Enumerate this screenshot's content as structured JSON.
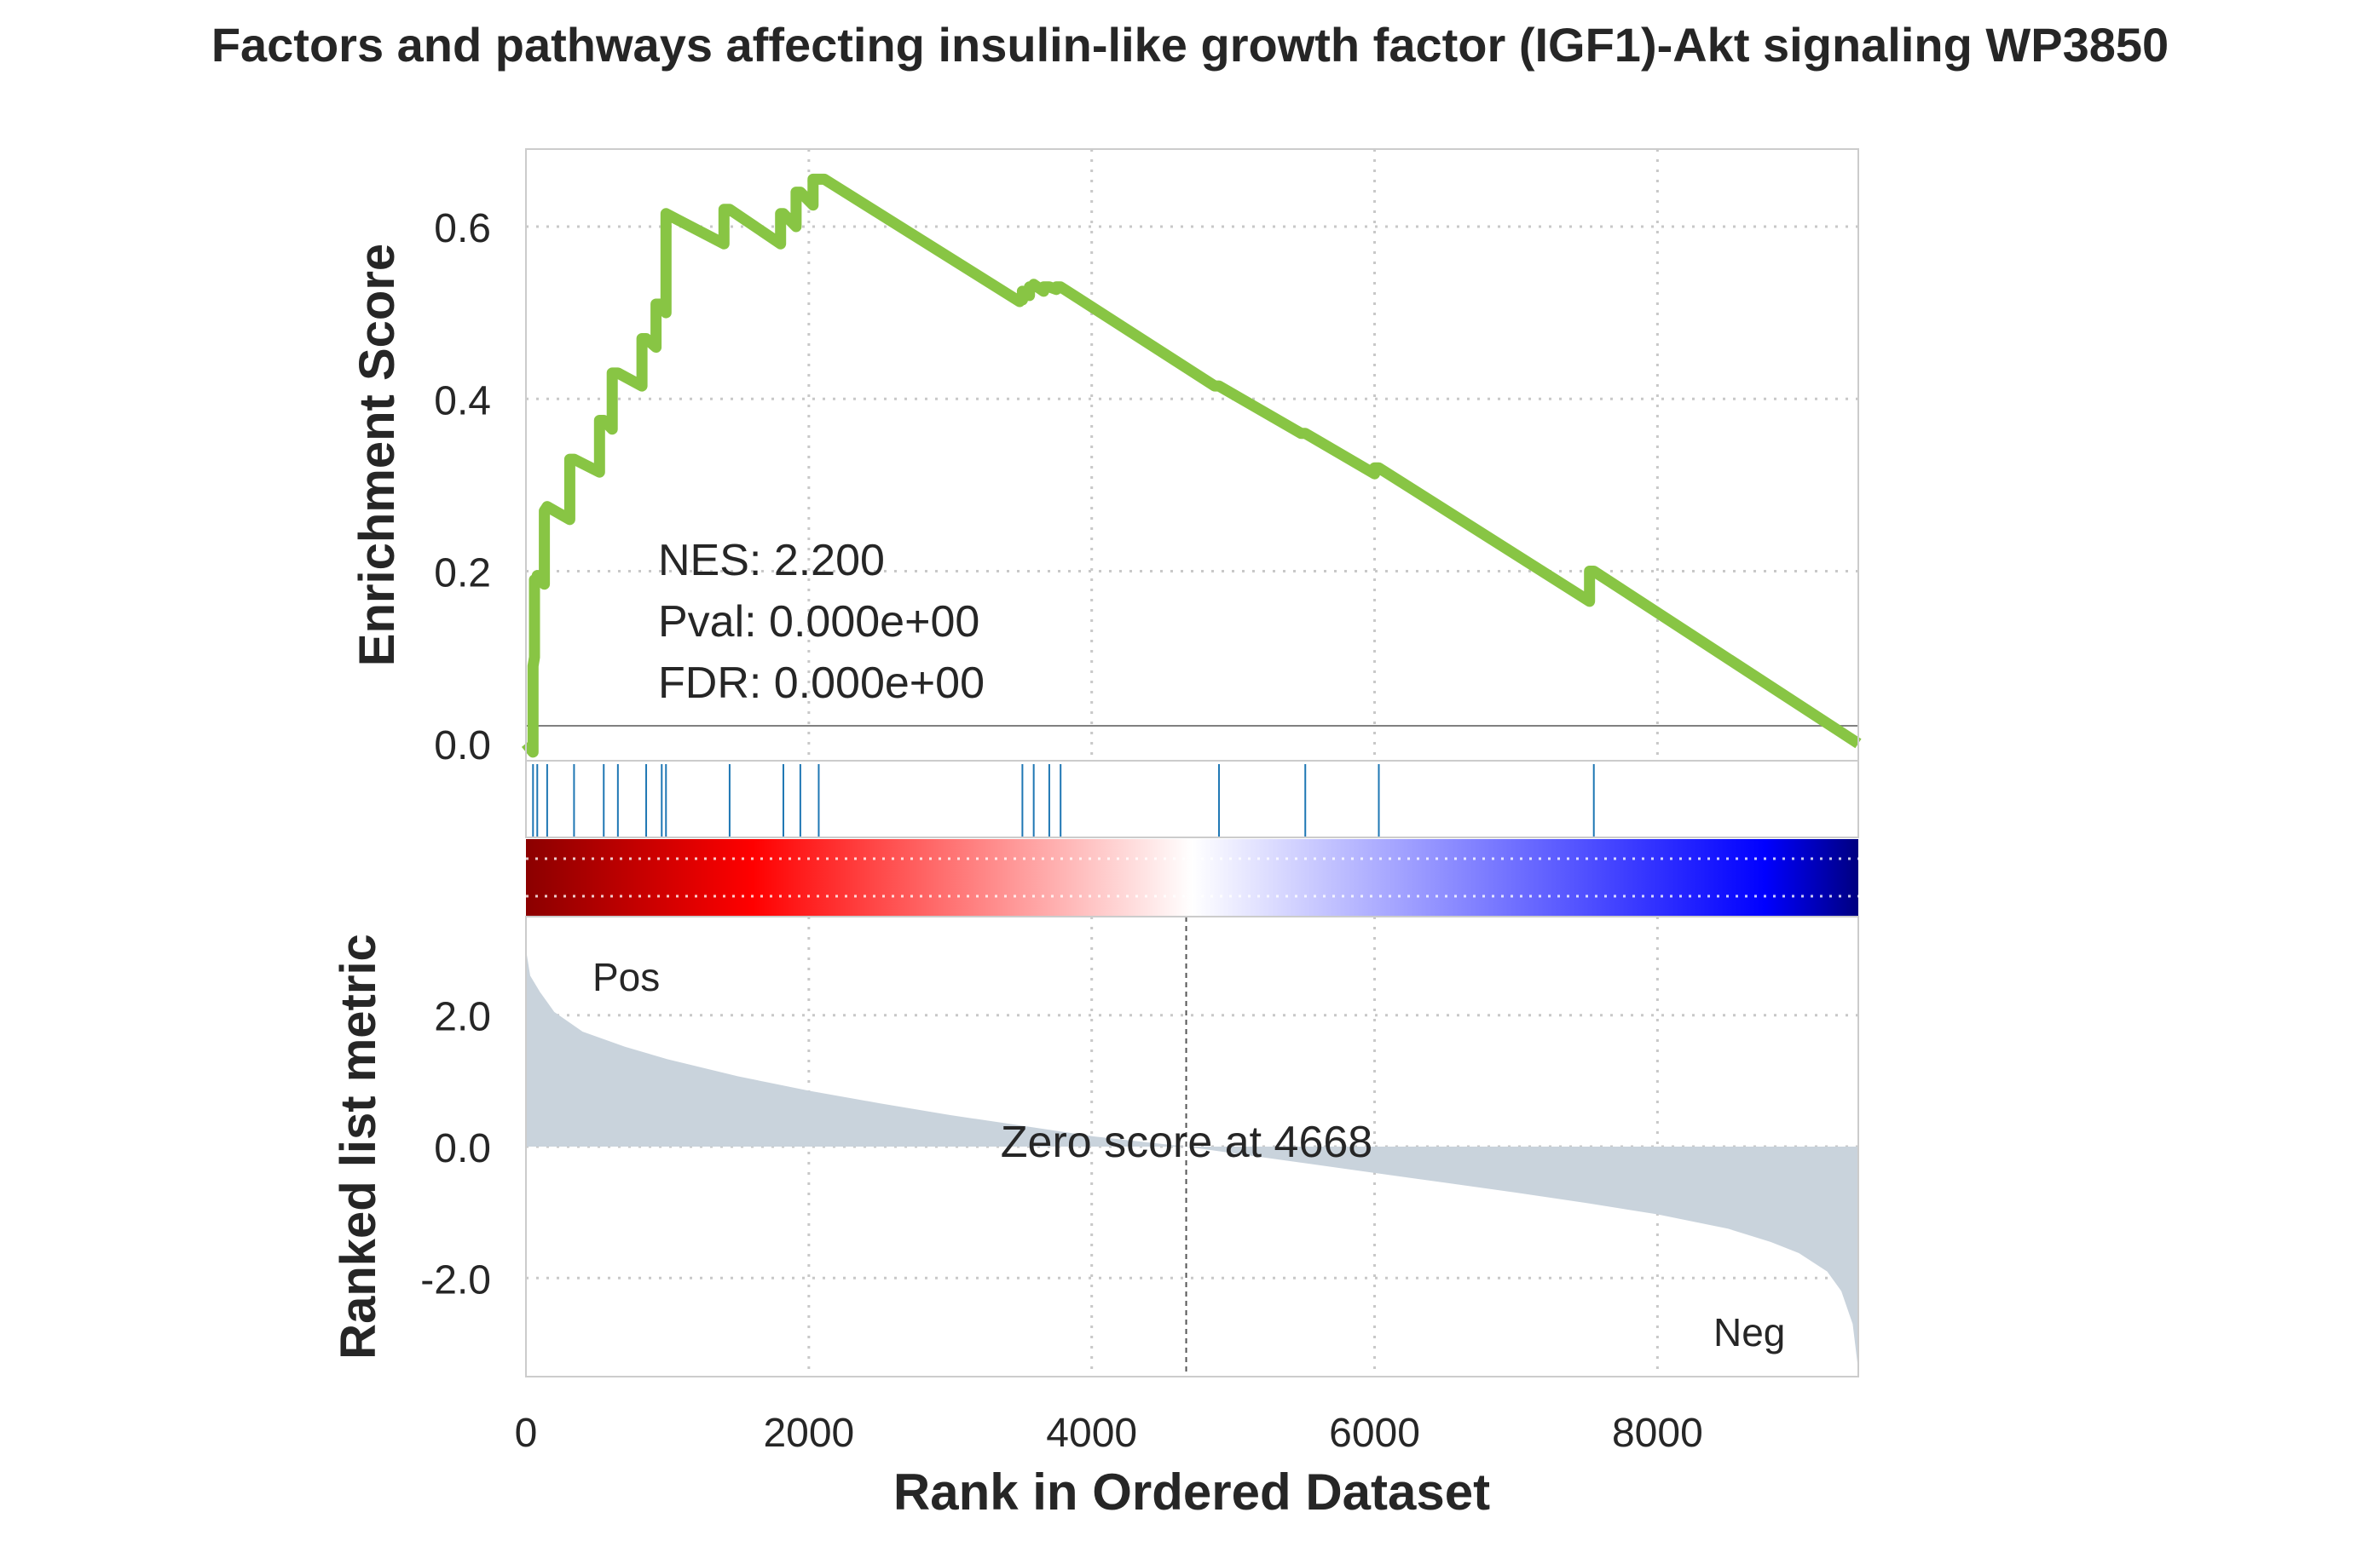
{
  "chart_data": {
    "type": "line",
    "title": "Factors and pathways affecting insulin-like growth factor (IGF1)-Akt signaling WP3850",
    "xlabel": "Rank in Ordered Dataset",
    "x_ticks": [
      "0",
      "2000",
      "4000",
      "6000",
      "8000"
    ],
    "xlim": [
      0,
      9420
    ],
    "panels": {
      "enrichment": {
        "ylabel": "Enrichment Score",
        "ylim": [
          -0.02,
          0.69
        ],
        "y_ticks": [
          "0.0",
          "0.2",
          "0.4",
          "0.6"
        ],
        "y_tick_values": [
          0.0,
          0.2,
          0.4,
          0.6
        ],
        "line_color": "#88c544",
        "series": {
          "x": [
            0,
            50,
            50,
            60,
            60,
            80,
            80,
            130,
            130,
            150,
            150,
            310,
            310,
            340,
            340,
            520,
            520,
            550,
            550,
            610,
            610,
            650,
            650,
            820,
            820,
            850,
            850,
            920,
            920,
            960,
            960,
            990,
            990,
            1400,
            1400,
            1440,
            1440,
            1800,
            1800,
            1820,
            1820,
            1910,
            1910,
            1940,
            1940,
            2030,
            2030,
            2070,
            2070,
            2110,
            3490,
            3490,
            3510,
            3510,
            3560,
            3560,
            3590,
            3590,
            3660,
            3660,
            3700,
            3700,
            3750,
            3750,
            3780,
            4870,
            4870,
            4900,
            5480,
            5480,
            5510,
            6000,
            6000,
            6030,
            7520,
            7520,
            7550,
            9420
          ],
          "y": [
            0.0,
            -0.01,
            0.09,
            0.1,
            0.19,
            0.19,
            0.195,
            0.185,
            0.27,
            0.275,
            0.275,
            0.26,
            0.33,
            0.33,
            0.33,
            0.315,
            0.375,
            0.375,
            0.375,
            0.365,
            0.43,
            0.43,
            0.43,
            0.415,
            0.47,
            0.47,
            0.47,
            0.46,
            0.51,
            0.51,
            0.51,
            0.5,
            0.615,
            0.58,
            0.62,
            0.62,
            0.62,
            0.58,
            0.615,
            0.615,
            0.615,
            0.6,
            0.64,
            0.64,
            0.64,
            0.625,
            0.655,
            0.655,
            0.655,
            0.655,
            0.513,
            0.515,
            0.515,
            0.525,
            0.52,
            0.53,
            0.53,
            0.533,
            0.525,
            0.53,
            0.53,
            0.53,
            0.527,
            0.53,
            0.53,
            0.415,
            0.415,
            0.415,
            0.36,
            0.36,
            0.36,
            0.313,
            0.32,
            0.32,
            0.165,
            0.2,
            0.2,
            0.0
          ]
        },
        "annotations": [
          "NES: 2.200",
          "Pval: 0.000e+00",
          "FDR: 0.000e+00"
        ]
      },
      "hits": {
        "line_color": "#1f77b4",
        "positions": [
          50,
          80,
          150,
          340,
          550,
          650,
          850,
          960,
          990,
          1440,
          1820,
          1940,
          2070,
          3510,
          3590,
          3700,
          3780,
          4900,
          5510,
          6030,
          7550
        ]
      },
      "colorbar": {
        "colors": [
          "#8b0000",
          "#ff0000",
          "#ffffff",
          "#0000ff",
          "#000080"
        ]
      },
      "ranked_metric": {
        "ylabel": "Ranked list metric",
        "ylim": [
          -3.5,
          3.5
        ],
        "y_ticks": [
          "2.0",
          "0.0",
          "-2.0"
        ],
        "y_tick_values": [
          2.0,
          0.0,
          -2.0
        ],
        "fill_color": "#c9d3dc",
        "series": {
          "x": [
            0,
            30,
            100,
            200,
            400,
            700,
            1000,
            1500,
            2000,
            2500,
            3000,
            3500,
            4000,
            4668,
            5000,
            5500,
            6000,
            6500,
            7000,
            7500,
            8000,
            8500,
            8800,
            9000,
            9200,
            9300,
            9380,
            9420
          ],
          "y": [
            3.0,
            2.6,
            2.35,
            2.05,
            1.75,
            1.52,
            1.33,
            1.07,
            0.85,
            0.66,
            0.48,
            0.32,
            0.16,
            0.0,
            -0.1,
            -0.25,
            -0.4,
            -0.55,
            -0.7,
            -0.86,
            -1.03,
            -1.25,
            -1.45,
            -1.62,
            -1.9,
            -2.2,
            -2.7,
            -3.4
          ]
        },
        "zero_cross": 4668,
        "zero_label": "Zero score at 4668",
        "pos_label": "Pos",
        "neg_label": "Neg",
        "pos_color": "#ff0000",
        "neg_color": "#0000ff"
      }
    }
  }
}
